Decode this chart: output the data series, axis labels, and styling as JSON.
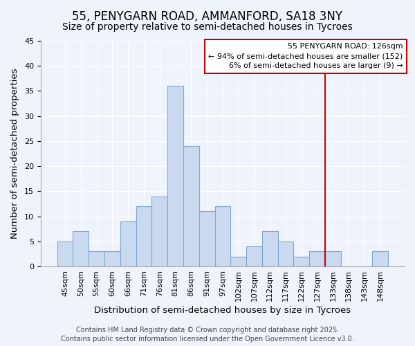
{
  "title": "55, PENYGARN ROAD, AMMANFORD, SA18 3NY",
  "subtitle": "Size of property relative to semi-detached houses in Tycroes",
  "xlabel": "Distribution of semi-detached houses by size in Tycroes",
  "ylabel": "Number of semi-detached properties",
  "bar_labels": [
    "45sqm",
    "50sqm",
    "55sqm",
    "60sqm",
    "66sqm",
    "71sqm",
    "76sqm",
    "81sqm",
    "86sqm",
    "91sqm",
    "97sqm",
    "102sqm",
    "107sqm",
    "112sqm",
    "117sqm",
    "122sqm",
    "127sqm",
    "133sqm",
    "138sqm",
    "143sqm",
    "148sqm"
  ],
  "bar_values": [
    5,
    7,
    3,
    3,
    9,
    12,
    14,
    36,
    24,
    11,
    12,
    2,
    4,
    7,
    5,
    2,
    3,
    3,
    0,
    3
  ],
  "bar_color": "#c9d9f0",
  "bar_edge_color": "#7fa8d0",
  "ylim": [
    0,
    45
  ],
  "yticks": [
    0,
    5,
    10,
    15,
    20,
    25,
    30,
    35,
    40,
    45
  ],
  "vline_color": "#cc0000",
  "vline_x_index": 16.5,
  "annotation_title": "55 PENYGARN ROAD: 126sqm",
  "annotation_line1": "← 94% of semi-detached houses are smaller (152)",
  "annotation_line2": "6% of semi-detached houses are larger (9) →",
  "annotation_box_color": "#ffffff",
  "annotation_box_edge_color": "#cc0000",
  "footer_line1": "Contains HM Land Registry data © Crown copyright and database right 2025.",
  "footer_line2": "Contains public sector information licensed under the Open Government Licence v3.0.",
  "background_color": "#eef3fc",
  "grid_color": "#ffffff",
  "title_fontsize": 12,
  "subtitle_fontsize": 10,
  "axis_label_fontsize": 9.5,
  "tick_fontsize": 8,
  "footer_fontsize": 7
}
